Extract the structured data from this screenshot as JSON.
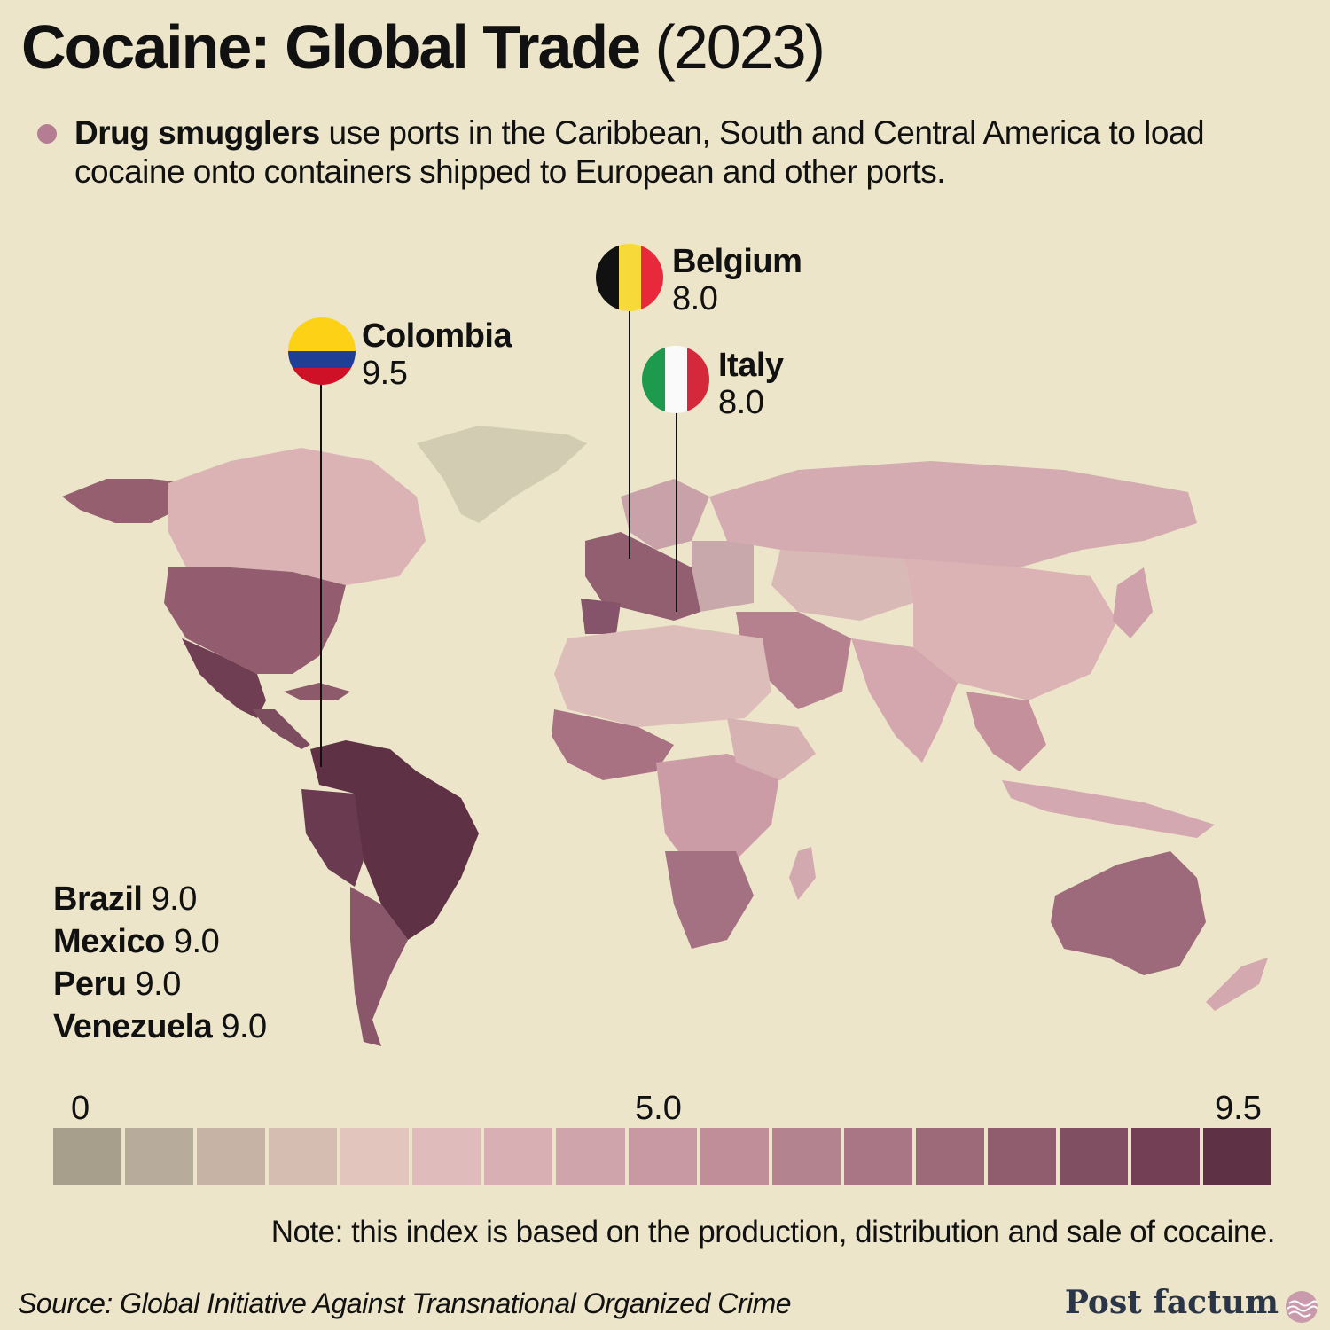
{
  "header": {
    "title_bold": "Cocaine: Global Trade",
    "title_year": "(2023)",
    "subtitle_bold": "Drug smugglers",
    "subtitle_rest": "use ports in the Caribbean, South and Central America to load cocaine onto containers shipped to European and other ports."
  },
  "callouts": [
    {
      "country": "Colombia",
      "value": "9.5",
      "flag": "colombia-flag-icon"
    },
    {
      "country": "Belgium",
      "value": "8.0",
      "flag": "belgium-flag-icon"
    },
    {
      "country": "Italy",
      "value": "8.0",
      "flag": "italy-flag-icon"
    }
  ],
  "others": [
    {
      "country": "Brazil",
      "value": "9.0"
    },
    {
      "country": "Mexico",
      "value": "9.0"
    },
    {
      "country": "Peru",
      "value": "9.0"
    },
    {
      "country": "Venezuela",
      "value": "9.0"
    }
  ],
  "chart_data": {
    "type": "choropleth",
    "title": "Cocaine: Global Trade (2023)",
    "scale": {
      "min": 0,
      "mid": 5.0,
      "max": 9.5,
      "tick_labels": [
        "0",
        "5.0",
        "9.5"
      ]
    },
    "values": [
      {
        "country": "Colombia",
        "value": 9.5
      },
      {
        "country": "Brazil",
        "value": 9.0
      },
      {
        "country": "Mexico",
        "value": 9.0
      },
      {
        "country": "Peru",
        "value": 9.0
      },
      {
        "country": "Venezuela",
        "value": 9.0
      },
      {
        "country": "Belgium",
        "value": 8.0
      },
      {
        "country": "Italy",
        "value": 8.0
      }
    ],
    "legend_colors": [
      "#a8a18c",
      "#b5ab98",
      "#c3b2a2",
      "#d4bcb0",
      "#e3c5be",
      "#e3bcbc",
      "#dbb2b4",
      "#d4a6ac",
      "#cd9aa3",
      "#c5909b",
      "#b98391",
      "#ad7686",
      "#a06b7d",
      "#925f71",
      "#865466",
      "#7a495c",
      "#6f3f52",
      "#5e3347",
      "#552d3e"
    ],
    "legend_swatches": [
      "#a79f8c",
      "#b7ab9b",
      "#c6b3a6",
      "#d5bdb2",
      "#e2c5bd",
      "#e0bbbb",
      "#d8b0b3",
      "#d0a4ab",
      "#c899a2",
      "#bf8e99",
      "#b48390",
      "#a97685",
      "#9c6a79",
      "#8f5d6d",
      "#814f62",
      "#723f55",
      "#5e3145"
    ]
  },
  "legend": {
    "min_label": "0",
    "mid_label": "5.0",
    "max_label": "9.5"
  },
  "footer": {
    "note": "Note: this index is based on the production, distribution and sale of cocaine.",
    "source": "Source: Global Initiative Against Transnational Organized Crime",
    "brand": "Post factum"
  }
}
